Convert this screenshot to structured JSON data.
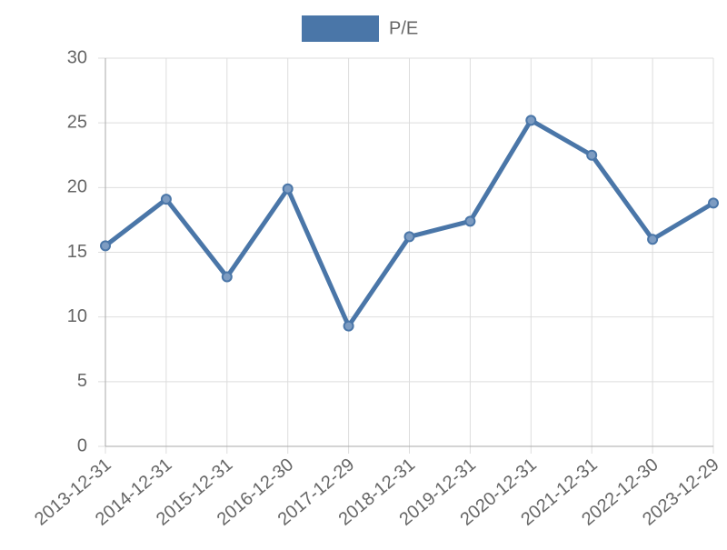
{
  "chart_data": {
    "type": "line",
    "categories": [
      "2013-12-31",
      "2014-12-31",
      "2015-12-31",
      "2016-12-30",
      "2017-12-29",
      "2018-12-31",
      "2019-12-31",
      "2020-12-31",
      "2021-12-31",
      "2022-12-30",
      "2023-12-29"
    ],
    "series": [
      {
        "name": "P/E",
        "color": "#4a76a8",
        "values": [
          15.5,
          19.1,
          13.1,
          19.9,
          9.3,
          16.2,
          17.4,
          25.2,
          22.5,
          16.0,
          18.8
        ]
      }
    ],
    "ylim": [
      0,
      30
    ],
    "yticks": [
      0,
      5,
      10,
      15,
      20,
      25,
      30
    ],
    "grid": true,
    "legend": "top"
  }
}
